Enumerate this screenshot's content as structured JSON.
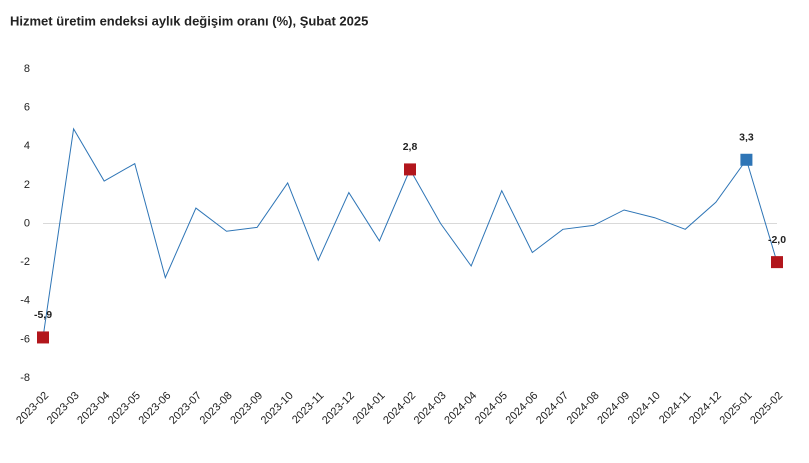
{
  "chart_data": {
    "type": "line",
    "title": "Hizmet üretim endeksi aylık değişim oranı (%), Şubat 2025",
    "categories": [
      "2023-02",
      "2023-03",
      "2023-04",
      "2023-05",
      "2023-06",
      "2023-07",
      "2023-08",
      "2023-09",
      "2023-10",
      "2023-11",
      "2023-12",
      "2024-01",
      "2024-02",
      "2024-03",
      "2024-04",
      "2024-05",
      "2024-06",
      "2024-07",
      "2024-08",
      "2024-09",
      "2024-10",
      "2024-11",
      "2024-12",
      "2025-01",
      "2025-02"
    ],
    "series": [
      {
        "name": "Aylık değişim",
        "color": "#2e75b6",
        "values": [
          -5.9,
          4.9,
          2.2,
          3.1,
          -2.8,
          0.8,
          -0.4,
          -0.2,
          2.1,
          -1.9,
          1.6,
          -0.9,
          2.8,
          0.0,
          -2.2,
          1.7,
          -1.5,
          -0.3,
          -0.1,
          0.7,
          0.3,
          -0.3,
          1.1,
          3.3,
          -2.0
        ],
        "value_labels": [
          "-5,9",
          null,
          null,
          null,
          null,
          null,
          null,
          null,
          null,
          null,
          null,
          null,
          "2,8",
          null,
          null,
          null,
          null,
          null,
          null,
          null,
          null,
          null,
          null,
          "3,3",
          "-2,0"
        ],
        "marker_colors": [
          "#b2161c",
          null,
          null,
          null,
          null,
          null,
          null,
          null,
          null,
          null,
          null,
          null,
          "#b2161c",
          null,
          null,
          null,
          null,
          null,
          null,
          null,
          null,
          null,
          null,
          "#2e75b6",
          "#b2161c"
        ]
      }
    ],
    "ylim": [
      -8,
      8
    ],
    "yticks": [
      -8,
      -6,
      -4,
      -2,
      0,
      2,
      4,
      6,
      8
    ],
    "grid": false
  }
}
